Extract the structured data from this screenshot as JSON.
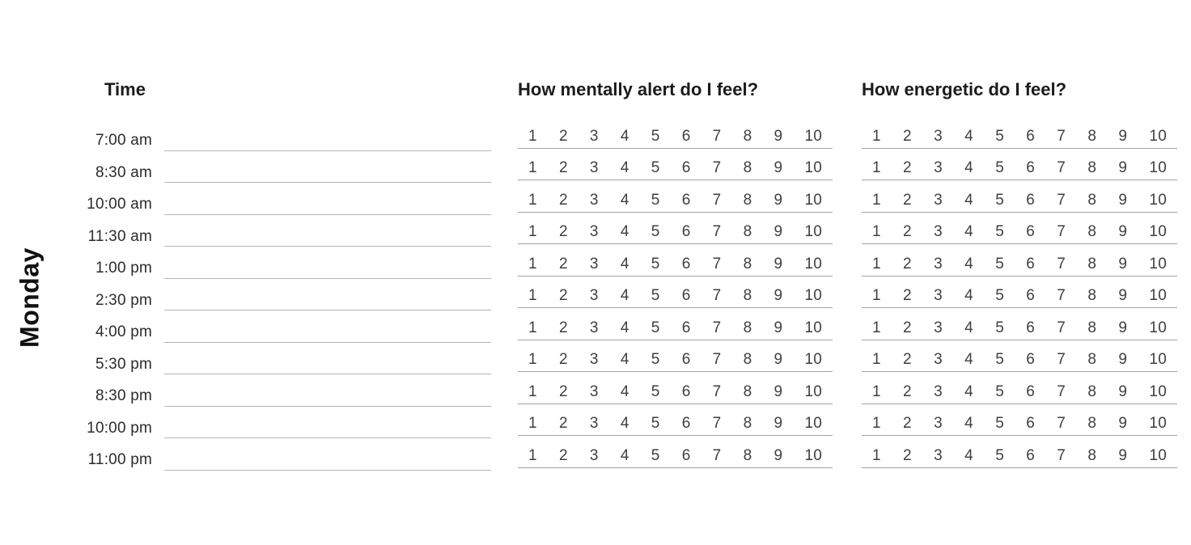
{
  "day_label": "Monday",
  "time_column": {
    "header": "Time",
    "slots": [
      "7:00 am",
      "8:30 am",
      "10:00 am",
      "11:30 am",
      "1:00 pm",
      "2:30 pm",
      "4:00 pm",
      "5:30 pm",
      "8:30 pm",
      "10:00 pm",
      "11:00 pm"
    ]
  },
  "rating_scale": [
    "1",
    "2",
    "3",
    "4",
    "5",
    "6",
    "7",
    "8",
    "9",
    "10"
  ],
  "rating_columns": [
    {
      "header": "How mentally alert do I feel?"
    },
    {
      "header": "How energetic do I feel?"
    }
  ],
  "colors": {
    "heading_text": "#1c1c1c",
    "label_text": "#2b2b2b",
    "scale_number_text": "#3f3f3f",
    "write_line": "#b4b4b4",
    "scale_line": "#a3a3a3",
    "page_bg": "#ffffff"
  }
}
